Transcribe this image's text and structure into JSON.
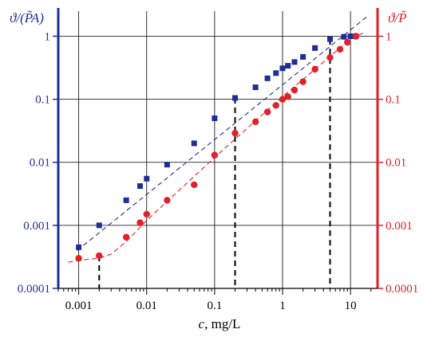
{
  "chart_data": {
    "type": "scatter",
    "xlabel": "c, mg/L",
    "xlabel_var": "c",
    "xlabel_unit": ", mg/L",
    "x_scale": "log",
    "y_scale": "log",
    "xlim": [
      0.0005,
      25
    ],
    "ylim": [
      0.0001,
      2.5
    ],
    "x_ticks": [
      {
        "value": 0.001,
        "label": "0.001"
      },
      {
        "value": 0.01,
        "label": "0.01"
      },
      {
        "value": 0.1,
        "label": "0.1"
      },
      {
        "value": 1,
        "label": "1"
      },
      {
        "value": 10,
        "label": "10"
      }
    ],
    "y_ticks": [
      {
        "value": 0.0001,
        "label": "0.0001"
      },
      {
        "value": 0.001,
        "label": "0.001"
      },
      {
        "value": 0.01,
        "label": "0.01"
      },
      {
        "value": 0.1,
        "label": "0.1"
      },
      {
        "value": 1,
        "label": "1"
      }
    ],
    "grid": true,
    "y_axes": {
      "left": {
        "label": "ϑ/(P̃A)",
        "color": "#1f2e96"
      },
      "right": {
        "label": "ϑ/P̃",
        "color": "#e0202a"
      }
    },
    "series": [
      {
        "axis": "left",
        "marker": "square",
        "color": "#1f2e96",
        "x": [
          0.001,
          0.002,
          0.005,
          0.008,
          0.01,
          0.02,
          0.05,
          0.1,
          0.2,
          0.4,
          0.6,
          0.8,
          1.0,
          1.2,
          1.5,
          2.0,
          3.0,
          5.0,
          8.0,
          10.0,
          12.0
        ],
        "y": [
          0.00045,
          0.001,
          0.0025,
          0.0042,
          0.0055,
          0.0092,
          0.02,
          0.05,
          0.105,
          0.155,
          0.215,
          0.26,
          0.31,
          0.34,
          0.39,
          0.47,
          0.65,
          0.9,
          0.98,
          1.0,
          1.0
        ]
      },
      {
        "axis": "right",
        "marker": "circle",
        "color": "#e0202a",
        "x": [
          0.001,
          0.002,
          0.005,
          0.008,
          0.01,
          0.02,
          0.05,
          0.1,
          0.2,
          0.4,
          0.6,
          0.8,
          1.0,
          1.2,
          1.5,
          2.0,
          3.0,
          5.0,
          7.0,
          9.0,
          12.0
        ],
        "y": [
          0.0003,
          0.00033,
          0.00065,
          0.0011,
          0.0015,
          0.0025,
          0.0044,
          0.013,
          0.029,
          0.044,
          0.063,
          0.08,
          0.1,
          0.11,
          0.14,
          0.19,
          0.3,
          0.46,
          0.62,
          0.8,
          1.0
        ]
      }
    ],
    "fit_lines": [
      {
        "axis": "left",
        "color": "#1f2e96",
        "dash": "dashed",
        "x": [
          0.00095,
          18
        ],
        "y": [
          0.0004,
          2.1
        ]
      },
      {
        "axis": "right",
        "color": "#e0202a",
        "dash": "dashed",
        "x": [
          0.0007,
          0.001,
          0.002,
          0.003,
          0.005,
          0.01,
          0.1,
          1,
          10,
          16
        ],
        "y": [
          0.00026,
          0.00028,
          0.0003,
          0.00035,
          0.00055,
          0.0012,
          0.012,
          0.11,
          0.9,
          1.15
        ]
      }
    ],
    "reference_lines": [
      {
        "x": 0.002,
        "y_top": 0.00033,
        "axis": "right"
      },
      {
        "x": 0.2,
        "y_top": 0.105,
        "axis": "left"
      },
      {
        "x": 5.0,
        "y_top": 0.9,
        "axis": "left"
      }
    ]
  }
}
